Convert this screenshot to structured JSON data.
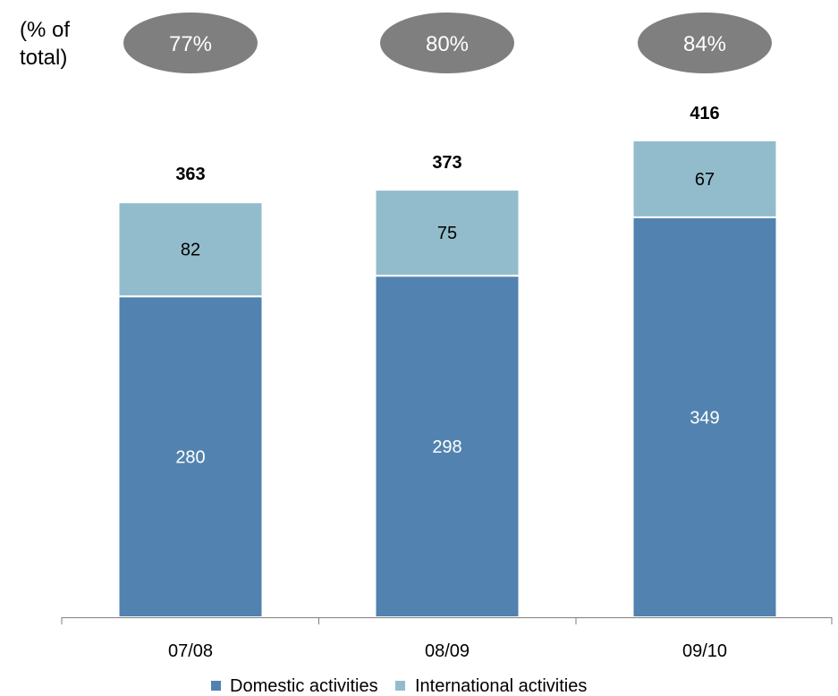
{
  "chart_data": {
    "type": "bar",
    "stacked": true,
    "categories": [
      "07/08",
      "08/09",
      "09/10"
    ],
    "series": [
      {
        "name": "Domestic activities",
        "values": [
          280,
          298,
          349
        ],
        "color": "#5282AF",
        "label_color": "#ffffff"
      },
      {
        "name": "International activities",
        "values": [
          82,
          75,
          67
        ],
        "color": "#92BCCB",
        "label_color": "#000000"
      }
    ],
    "totals": [
      363,
      373,
      416
    ],
    "domestic_share": {
      "label_lines": [
        "(% of",
        "total)"
      ],
      "values": [
        "77%",
        "80%",
        "84%"
      ],
      "ellipse_color": "#7F7F7F"
    },
    "ylim": [
      0,
      416
    ],
    "grid": false,
    "legend": {
      "position": "bottom"
    }
  }
}
